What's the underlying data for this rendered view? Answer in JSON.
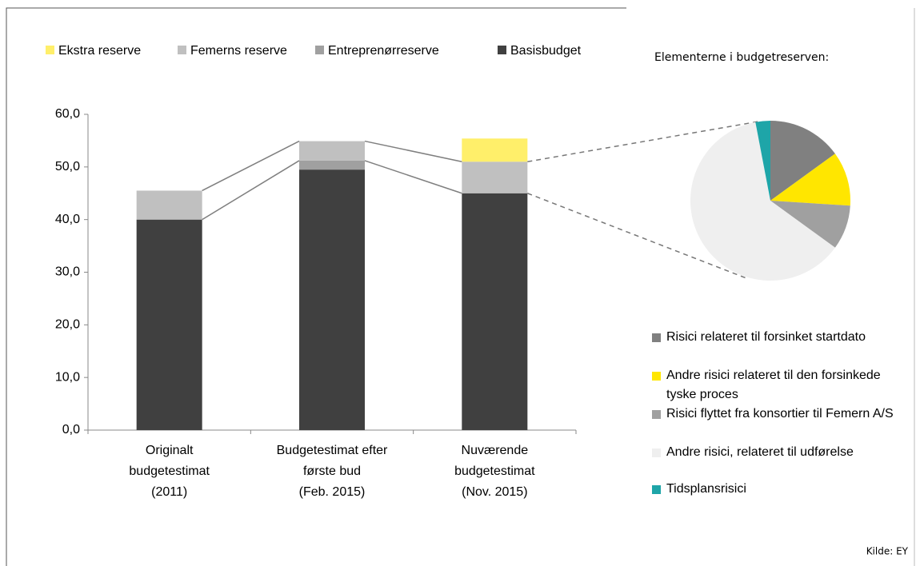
{
  "chart_data": [
    {
      "type": "bar",
      "categories": [
        [
          "Originalt",
          "budgetestimat",
          "(2011)"
        ],
        [
          "Budgetestimat efter",
          "første bud",
          "(Feb. 2015)"
        ],
        [
          "Nuværende",
          "budgetestimat",
          "(Nov. 2015)"
        ]
      ],
      "series": [
        {
          "name": "Ekstra reserve",
          "color": "#ffef6a",
          "values": [
            0,
            0,
            4.4
          ]
        },
        {
          "name": "Femerns reserve",
          "color": "#c0c0c0",
          "values": [
            5.5,
            3.7,
            6.0
          ]
        },
        {
          "name": "Entreprenørreserve",
          "color": "#a0a0a0",
          "values": [
            0,
            1.7,
            0
          ]
        },
        {
          "name": "Basisbudget",
          "color": "#404040",
          "values": [
            40.0,
            49.5,
            45.0
          ]
        }
      ],
      "ylim": [
        0,
        60
      ],
      "yticks": [
        {
          "value": 0,
          "label": "0,0"
        },
        {
          "value": 10,
          "label": "10,0"
        },
        {
          "value": 20,
          "label": "20,0"
        },
        {
          "value": 30,
          "label": "30,0"
        },
        {
          "value": 40,
          "label": "40,0"
        },
        {
          "value": 50,
          "label": "50,0"
        },
        {
          "value": 60,
          "label": "60,0"
        }
      ]
    },
    {
      "type": "pie",
      "title": "Elementerne i budgetreserven:",
      "categories": [
        "Risici relateret til forsinket startdato",
        "Andre risici relateret til den forsinkede tyske proces",
        "Risici flyttet fra konsortier til Femern A/S",
        "Andre risici, relateret til udførelse",
        "Tidsplansrisici"
      ],
      "values": [
        15,
        11,
        9,
        62,
        3
      ],
      "colors": [
        "#808080",
        "#ffe600",
        "#a0a0a0",
        "#efefef",
        "#1ea5a8"
      ]
    }
  ],
  "source": "Kilde: EY"
}
